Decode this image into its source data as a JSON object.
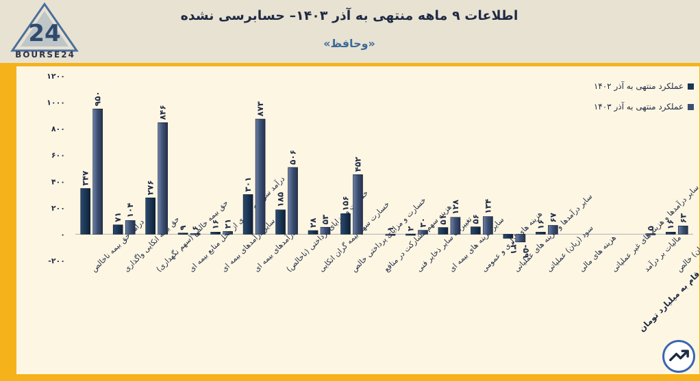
{
  "header": {
    "title": "اطلاعات ۹ ماهه منتهی به آذر ۱۴۰۳– حسابرسی نشده",
    "subtitle": "«وحافظ»",
    "logo_text": "BOURSE24",
    "logo_mark": "24"
  },
  "unit_note": "ارقام به میلیارد تومان",
  "colors": {
    "series_1402": "#1c3553",
    "series_1403": "#3c4f72",
    "background": "#f6b21a",
    "panel": "#fdf6e3",
    "header": "#e8e2d2"
  },
  "chart_data": {
    "type": "bar",
    "title": "اطلاعات ۹ ماهه منتهی به آذر ۱۴۰۳– حسابرسی نشده",
    "subtitle": "«وحافظ»",
    "ylim": [
      -200,
      1200
    ],
    "yticks": [
      -200,
      0,
      200,
      400,
      600,
      800,
      1000,
      1200
    ],
    "ytick_labels": [
      "-۲۰۰",
      "۰",
      "۲۰۰",
      "۴۰۰",
      "۶۰۰",
      "۸۰۰",
      "۱۰۰۰",
      "۱۲۰۰"
    ],
    "legend_position": "top-right",
    "categories": [
      "درآمد حق بیمه ناخالص",
      "حق بیمه اتکایی واگذاری",
      "حق بیمه خالص (سهم نگهداری)",
      "درآمد سرمایه گذاری از محل منابع بیمه ای",
      "سایر درآمدهای بیمه ای",
      "درآمدهای بیمه ای",
      "خسارت و مزایای پرداختی (ناخالص)",
      "خسارت سهم بیمه گران اتکایی",
      "خسارت و مزایای پرداختی خالص",
      "هزینه سهم مشارکت در منافع",
      "تغییرات سایر ذخایر فنی",
      "سایر هزینه های بیمه ای",
      "هزینه های اداری و عمومی",
      "سایر درآمدها و هزینه های عملیاتی",
      "سود (زیان) عملیاتی",
      "هزینه های مالی",
      "سایر درآمدها و هزینه های غیر عملیاتی",
      "مالیات بر درآمد",
      "سود (زیان) خالص"
    ],
    "series": [
      {
        "name": "عملکرد منتهی به آذر ۱۴۰۲",
        "values": [
          347,
          71,
          276,
          9,
          16,
          301,
          185,
          28,
          156,
          null,
          2,
          51,
          56,
          -31,
          16,
          null,
          null,
          null,
          16
        ],
        "labels": [
          "۳۴۷",
          "۷۱",
          "۲۷۶",
          "۹",
          "۱۶",
          "۳۰۱",
          "۱۸۵",
          "۲۸",
          "۱۵۶",
          "",
          "۲",
          "۵۱",
          "۵۶",
          "-۳۱",
          "۱۶",
          "",
          "",
          "",
          "۱۶"
        ]
      },
      {
        "name": "عملکرد منتهی به آذر ۱۴۰۳",
        "values": [
          950,
          104,
          846,
          6,
          21,
          873,
          506,
          53,
          452,
          1,
          30,
          128,
          134,
          -59,
          67,
          null,
          null,
          5,
          63
        ],
        "labels": [
          "۹۵۰",
          "۱۰۴",
          "۸۴۶",
          "۶",
          "۲۱",
          "۸۷۳",
          "۵۰۶",
          "۵۳",
          "۴۵۲",
          "۱",
          "۳۰",
          "۱۲۸",
          "۱۳۴",
          "-۵۹",
          "۶۷",
          "",
          "",
          "۵",
          "۶۳"
        ]
      }
    ]
  }
}
